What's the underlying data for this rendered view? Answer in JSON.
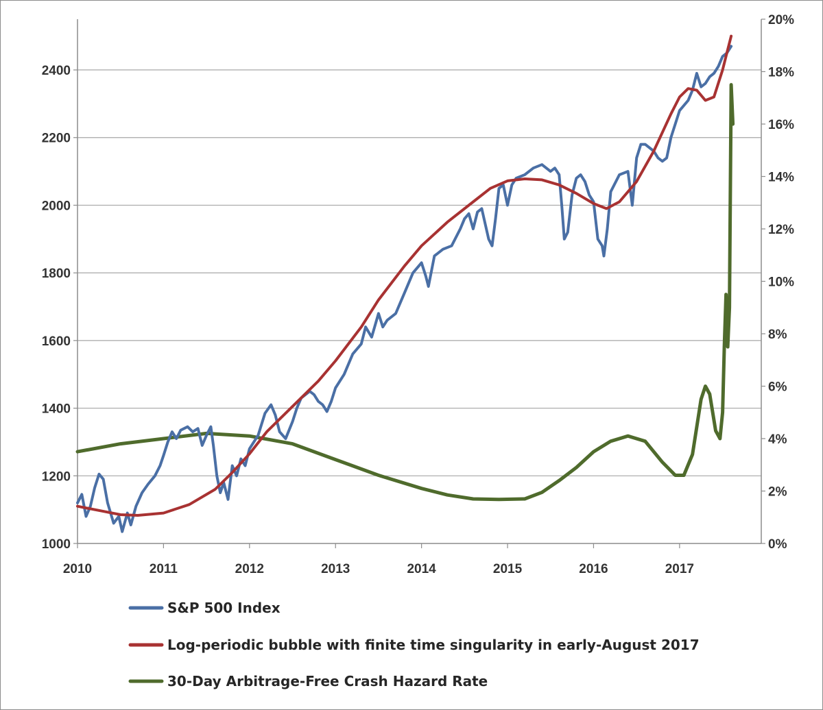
{
  "chart_data": {
    "type": "line",
    "title": "",
    "xlabel": "",
    "ylabel": "",
    "x_ticks": [
      "2010",
      "2011",
      "2012",
      "2013",
      "2014",
      "2015",
      "2016",
      "2017"
    ],
    "y_left_ticks": [
      "1000",
      "1200",
      "1400",
      "1600",
      "1800",
      "2000",
      "2200",
      "2400"
    ],
    "y_right_ticks": [
      "0%",
      "2%",
      "4%",
      "6%",
      "8%",
      "10%",
      "12%",
      "14%",
      "16%",
      "18%",
      "20%"
    ],
    "xlim": [
      2010,
      2017.95
    ],
    "ylim_left": [
      1000,
      2550
    ],
    "ylim_right": [
      0,
      20
    ],
    "grid": "horizontal",
    "legend_position": "bottom",
    "colors": {
      "sp500": "#4a6fa5",
      "bubble": "#a83232",
      "hazard": "#4f6b2c",
      "grid": "#a6a6a6",
      "axis": "#8c8c8c"
    },
    "series": [
      {
        "name": "S&P 500 Index",
        "axis": "left",
        "x": [
          2010.0,
          2010.05,
          2010.1,
          2010.15,
          2010.2,
          2010.25,
          2010.3,
          2010.35,
          2010.42,
          2010.48,
          2010.52,
          2010.58,
          2010.62,
          2010.68,
          2010.75,
          2010.82,
          2010.9,
          2010.96,
          2011.0,
          2011.05,
          2011.1,
          2011.15,
          2011.2,
          2011.28,
          2011.34,
          2011.4,
          2011.45,
          2011.5,
          2011.55,
          2011.58,
          2011.62,
          2011.66,
          2011.7,
          2011.75,
          2011.8,
          2011.85,
          2011.9,
          2011.95,
          2012.0,
          2012.1,
          2012.18,
          2012.25,
          2012.3,
          2012.35,
          2012.42,
          2012.5,
          2012.55,
          2012.6,
          2012.7,
          2012.75,
          2012.8,
          2012.85,
          2012.9,
          2012.95,
          2013.0,
          2013.1,
          2013.2,
          2013.3,
          2013.35,
          2013.42,
          2013.5,
          2013.55,
          2013.6,
          2013.7,
          2013.8,
          2013.9,
          2014.0,
          2014.05,
          2014.08,
          2014.15,
          2014.25,
          2014.35,
          2014.45,
          2014.5,
          2014.55,
          2014.6,
          2014.65,
          2014.7,
          2014.78,
          2014.82,
          2014.86,
          2014.9,
          2014.95,
          2015.0,
          2015.05,
          2015.1,
          2015.2,
          2015.3,
          2015.4,
          2015.5,
          2015.55,
          2015.6,
          2015.63,
          2015.66,
          2015.7,
          2015.75,
          2015.8,
          2015.85,
          2015.9,
          2015.95,
          2016.0,
          2016.05,
          2016.1,
          2016.12,
          2016.16,
          2016.2,
          2016.3,
          2016.4,
          2016.45,
          2016.5,
          2016.55,
          2016.6,
          2016.7,
          2016.75,
          2016.8,
          2016.85,
          2016.9,
          2017.0,
          2017.1,
          2017.15,
          2017.2,
          2017.25,
          2017.3,
          2017.35,
          2017.4,
          2017.45,
          2017.5,
          2017.55,
          2017.6
        ],
        "values": [
          1120,
          1145,
          1080,
          1110,
          1165,
          1205,
          1190,
          1120,
          1060,
          1080,
          1035,
          1090,
          1055,
          1110,
          1150,
          1175,
          1200,
          1230,
          1260,
          1300,
          1330,
          1310,
          1335,
          1345,
          1330,
          1340,
          1290,
          1320,
          1345,
          1290,
          1200,
          1150,
          1180,
          1130,
          1230,
          1200,
          1250,
          1230,
          1280,
          1320,
          1385,
          1410,
          1380,
          1330,
          1310,
          1360,
          1400,
          1430,
          1450,
          1440,
          1420,
          1410,
          1390,
          1420,
          1460,
          1500,
          1560,
          1590,
          1640,
          1610,
          1680,
          1640,
          1660,
          1680,
          1740,
          1800,
          1830,
          1790,
          1760,
          1850,
          1870,
          1880,
          1930,
          1960,
          1975,
          1930,
          1980,
          1990,
          1900,
          1880,
          1960,
          2050,
          2060,
          2000,
          2060,
          2080,
          2090,
          2110,
          2120,
          2100,
          2110,
          2090,
          2000,
          1900,
          1920,
          2030,
          2080,
          2090,
          2070,
          2030,
          2010,
          1900,
          1880,
          1850,
          1930,
          2040,
          2090,
          2100,
          2000,
          2140,
          2180,
          2180,
          2160,
          2140,
          2130,
          2140,
          2200,
          2280,
          2310,
          2340,
          2390,
          2350,
          2360,
          2380,
          2390,
          2410,
          2440,
          2450,
          2470
        ]
      },
      {
        "name": "Log-periodic bubble with finite time singularity in early-August 2017",
        "axis": "left",
        "x": [
          2010.0,
          2010.3,
          2010.5,
          2010.7,
          2011.0,
          2011.3,
          2011.6,
          2011.8,
          2012.0,
          2012.2,
          2012.5,
          2012.8,
          2013.0,
          2013.3,
          2013.5,
          2013.8,
          2014.0,
          2014.3,
          2014.6,
          2014.8,
          2015.0,
          2015.2,
          2015.4,
          2015.6,
          2015.8,
          2016.0,
          2016.15,
          2016.3,
          2016.5,
          2016.7,
          2016.9,
          2017.0,
          2017.1,
          2017.2,
          2017.3,
          2017.4,
          2017.5,
          2017.55,
          2017.6
        ],
        "values": [
          1110,
          1095,
          1085,
          1083,
          1090,
          1115,
          1160,
          1210,
          1265,
          1330,
          1405,
          1480,
          1540,
          1640,
          1720,
          1820,
          1880,
          1950,
          2010,
          2050,
          2072,
          2078,
          2075,
          2060,
          2035,
          2005,
          1990,
          2010,
          2070,
          2160,
          2270,
          2320,
          2345,
          2340,
          2310,
          2320,
          2400,
          2450,
          2500
        ]
      },
      {
        "name": "30-Day Arbitrage-Free Crash Hazard Rate",
        "axis": "right",
        "x": [
          2010.0,
          2010.5,
          2011.0,
          2011.5,
          2012.0,
          2012.5,
          2013.0,
          2013.5,
          2014.0,
          2014.3,
          2014.6,
          2014.9,
          2015.2,
          2015.4,
          2015.6,
          2015.8,
          2016.0,
          2016.2,
          2016.4,
          2016.6,
          2016.8,
          2016.95,
          2017.05,
          2017.15,
          2017.25,
          2017.3,
          2017.35,
          2017.42,
          2017.47,
          2017.5,
          2017.52,
          2017.54,
          2017.56,
          2017.58,
          2017.6,
          2017.62
        ],
        "values": [
          3.5,
          3.8,
          4.0,
          4.2,
          4.1,
          3.8,
          3.2,
          2.6,
          2.1,
          1.85,
          1.7,
          1.68,
          1.7,
          1.95,
          2.4,
          2.9,
          3.5,
          3.9,
          4.1,
          3.9,
          3.1,
          2.6,
          2.6,
          3.4,
          5.5,
          6.0,
          5.7,
          4.3,
          4.0,
          5.0,
          7.5,
          9.5,
          7.5,
          9.0,
          17.5,
          16.0
        ]
      }
    ]
  }
}
